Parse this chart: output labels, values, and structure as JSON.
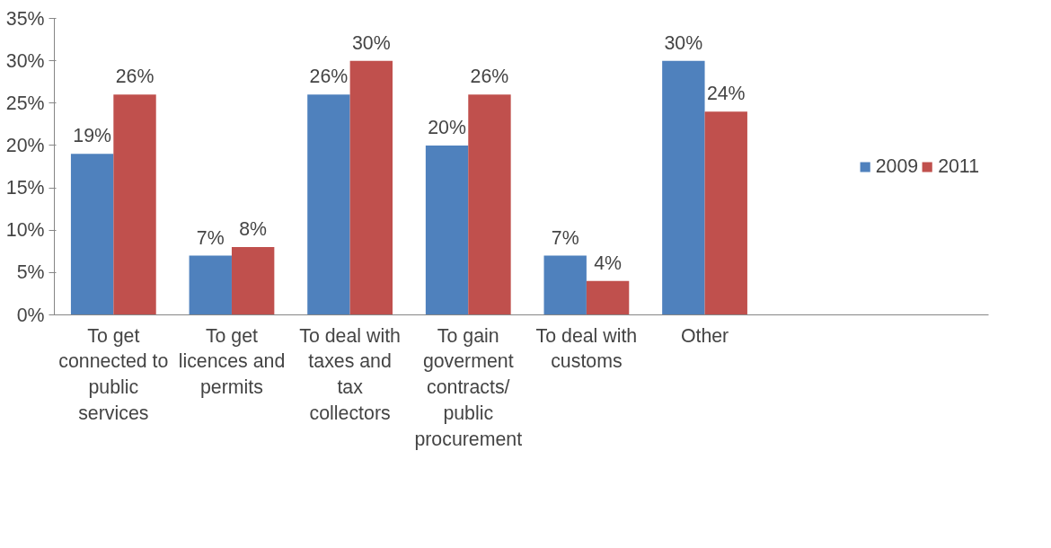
{
  "chart_data": {
    "type": "bar",
    "categories": [
      "To get connected to public services",
      "To get licences and permits",
      "To deal with taxes and tax collectors",
      "To gain goverment contracts/ public procurement",
      "To deal with customs",
      "Other"
    ],
    "series": [
      {
        "name": "2009",
        "color": "#4f81bd",
        "values": [
          19,
          7,
          26,
          20,
          7,
          30
        ],
        "value_labels": [
          "19%",
          "7%",
          "26%",
          "20%",
          "7%",
          "30%"
        ]
      },
      {
        "name": "2011",
        "color": "#c0504d",
        "values": [
          26,
          8,
          30,
          26,
          4,
          24
        ],
        "value_labels": [
          "26%",
          "8%",
          "30%",
          "26%",
          "4%",
          "24%"
        ]
      }
    ],
    "ylim": [
      0,
      35
    ],
    "yticks": [
      {
        "value": 0,
        "label": "0%"
      },
      {
        "value": 5,
        "label": "5%"
      },
      {
        "value": 10,
        "label": "10%"
      },
      {
        "value": 15,
        "label": "15%"
      },
      {
        "value": 20,
        "label": "20%"
      },
      {
        "value": 25,
        "label": "25%"
      },
      {
        "value": 30,
        "label": "30%"
      },
      {
        "value": 35,
        "label": "35%"
      }
    ],
    "grid": false,
    "legend": "right"
  }
}
